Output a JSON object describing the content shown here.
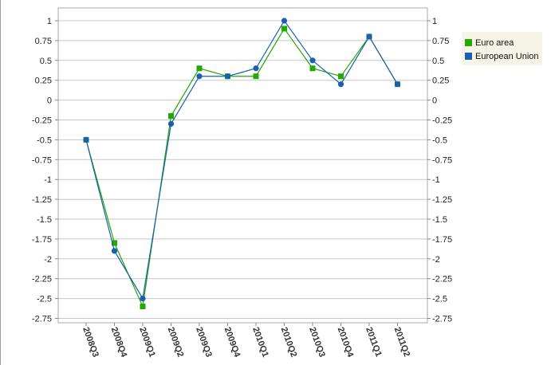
{
  "chart_data": {
    "type": "line",
    "categories": [
      "2008Q3",
      "2008Q4",
      "2009Q1",
      "2009Q2",
      "2009Q3",
      "2009Q4",
      "2010Q1",
      "2010Q2",
      "2010Q3",
      "2010Q4",
      "2011Q1",
      "2011Q2"
    ],
    "series": [
      {
        "name": "Euro area",
        "color": "#22aa00",
        "marker": "square",
        "values": [
          -0.5,
          -1.8,
          -2.6,
          -0.2,
          0.4,
          0.3,
          0.3,
          0.9,
          0.4,
          0.3,
          0.8,
          0.2
        ]
      },
      {
        "name": "European Union",
        "color": "#1a5fb4",
        "marker": "circle",
        "values": [
          -0.5,
          -1.9,
          -2.5,
          -0.3,
          0.3,
          0.3,
          0.4,
          1.0,
          0.5,
          0.2,
          0.8,
          0.2
        ]
      }
    ],
    "yticks": [
      "1",
      "0.75",
      "0.5",
      "0.25",
      "0",
      "-0.25",
      "-0.5",
      "-0.75",
      "-1",
      "-1.25",
      "-1.5",
      "-1.75",
      "-2",
      "-2.25",
      "-2.5",
      "-2.75"
    ],
    "ylim": [
      -2.75,
      1.15
    ],
    "grid": true,
    "dual_y_axis": true,
    "legend_position": "top-right"
  }
}
